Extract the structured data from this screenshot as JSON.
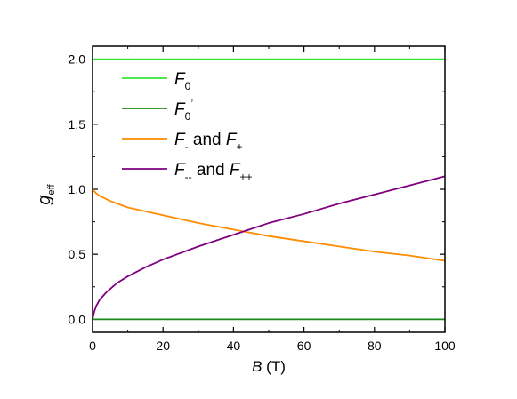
{
  "chart_data": {
    "type": "line",
    "xlabel_var": "B",
    "xlabel_unit": " (T)",
    "ylabel_main": "g",
    "ylabel_sub": "eff",
    "xlim": [
      0,
      100
    ],
    "ylim": [
      -0.1,
      2.1
    ],
    "xticks": [
      0,
      20,
      40,
      60,
      80,
      100
    ],
    "xtick_labels": [
      "0",
      "20",
      "40",
      "60",
      "80",
      "100"
    ],
    "yticks": [
      0.0,
      0.5,
      1.0,
      1.5,
      2.0
    ],
    "ytick_labels": [
      "0.0",
      "0.5",
      "1.0",
      "1.5",
      "2.0"
    ],
    "grid": false,
    "legend_position": "top-left",
    "series": [
      {
        "legend_main": "F",
        "legend_sub": "0",
        "legend_sup": "",
        "legend_mid": "",
        "legend_main2": "",
        "legend_sub2": "",
        "color": "#33e633",
        "x": [
          0,
          100
        ],
        "y": [
          2.0,
          2.0
        ]
      },
      {
        "legend_main": "F",
        "legend_sub": "0",
        "legend_sup": "’",
        "legend_mid": "",
        "legend_main2": "",
        "legend_sub2": "",
        "color": "#1a8c1a",
        "x": [
          0,
          100
        ],
        "y": [
          0.0,
          0.0
        ]
      },
      {
        "legend_main": "F",
        "legend_sub": "-",
        "legend_sup": "",
        "legend_mid": " and ",
        "legend_main2": "F",
        "legend_sub2": "+",
        "color": "#ff8c00",
        "x": [
          0,
          1,
          2,
          5,
          10,
          15,
          20,
          30,
          40,
          50,
          60,
          70,
          80,
          90,
          100
        ],
        "y": [
          1.0,
          0.97,
          0.95,
          0.91,
          0.86,
          0.83,
          0.8,
          0.74,
          0.69,
          0.64,
          0.6,
          0.56,
          0.52,
          0.49,
          0.45
        ]
      },
      {
        "legend_main": "F",
        "legend_sub": "--",
        "legend_sup": "",
        "legend_mid": " and ",
        "legend_main2": "F",
        "legend_sub2": "++",
        "color": "#800080",
        "x": [
          0,
          0.5,
          1,
          2,
          4,
          7,
          10,
          15,
          20,
          30,
          40,
          50,
          60,
          70,
          80,
          90,
          100
        ],
        "y": [
          0.0,
          0.06,
          0.1,
          0.15,
          0.21,
          0.28,
          0.33,
          0.4,
          0.46,
          0.56,
          0.65,
          0.74,
          0.81,
          0.89,
          0.96,
          1.03,
          1.1
        ]
      }
    ]
  }
}
